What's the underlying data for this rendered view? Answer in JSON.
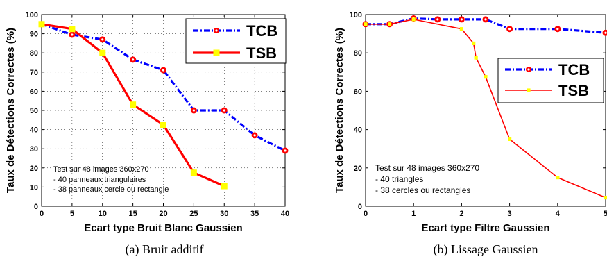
{
  "chart_data": [
    {
      "type": "line",
      "caption": "(a) Bruit additif",
      "xlabel": "Ecart type Bruit Blanc Gaussien",
      "ylabel": "Taux de Détections Correctes (%)",
      "xlim": [
        0,
        40
      ],
      "ylim": [
        0,
        100
      ],
      "xticks": [
        0,
        5,
        10,
        15,
        20,
        25,
        30,
        35,
        40
      ],
      "yticks": [
        0,
        10,
        20,
        30,
        40,
        50,
        60,
        70,
        80,
        90,
        100
      ],
      "grid": true,
      "legend_position": "top-right",
      "annotation": [
        "Test sur 48 images 360x270",
        "- 40 panneaux triangulaires",
        "- 38 panneaux cercle ou rectangle"
      ],
      "series": [
        {
          "name": "TCB",
          "color": "#0000ff",
          "marker_color": "#ff0000",
          "style": "dash-dot",
          "marker": "circle",
          "x": [
            0,
            5,
            10,
            15,
            20,
            25,
            30,
            35,
            40
          ],
          "y": [
            95,
            89.5,
            87,
            76.5,
            71,
            50,
            50,
            37,
            29
          ]
        },
        {
          "name": "TSB",
          "color": "#ff0000",
          "marker_color": "#ffff00",
          "style": "solid",
          "marker": "square",
          "x": [
            0,
            5,
            10,
            15,
            20,
            25,
            30
          ],
          "y": [
            95,
            92.5,
            80,
            53,
            42.5,
            17.5,
            10.5
          ]
        }
      ]
    },
    {
      "type": "line",
      "caption": "(b) Lissage Gaussien",
      "xlabel": "Ecart type Filtre Gaussien",
      "ylabel": "Taux de Détections Correctes (%)",
      "xlim": [
        0,
        5
      ],
      "ylim": [
        0,
        100
      ],
      "xticks": [
        0,
        1,
        2,
        3,
        4,
        5
      ],
      "yticks": [
        0,
        20,
        40,
        60,
        80,
        100
      ],
      "grid": false,
      "legend_position": "right",
      "annotation": [
        "Test sur 48 images 360x270",
        "- 40 triangles",
        "- 38 cercles ou rectangles"
      ],
      "series": [
        {
          "name": "TCB",
          "color": "#0000ff",
          "marker_color": "#ff0000",
          "style": "dash-dot",
          "marker": "circle",
          "x": [
            0,
            0.5,
            1,
            1.5,
            2,
            2.5,
            3,
            4,
            5
          ],
          "y": [
            95,
            95,
            98,
            97.5,
            97.5,
            97.5,
            92.5,
            92.5,
            90.5
          ]
        },
        {
          "name": "TSB",
          "color": "#ff0000",
          "marker_color": "#ffff00",
          "style": "solid",
          "marker": "square",
          "x": [
            0,
            0.5,
            1,
            2,
            2.25,
            2.3,
            2.5,
            3,
            4,
            5
          ],
          "y": [
            95,
            95,
            97.5,
            92.5,
            85,
            77.5,
            67.5,
            35,
            15,
            4.5
          ]
        }
      ]
    }
  ]
}
